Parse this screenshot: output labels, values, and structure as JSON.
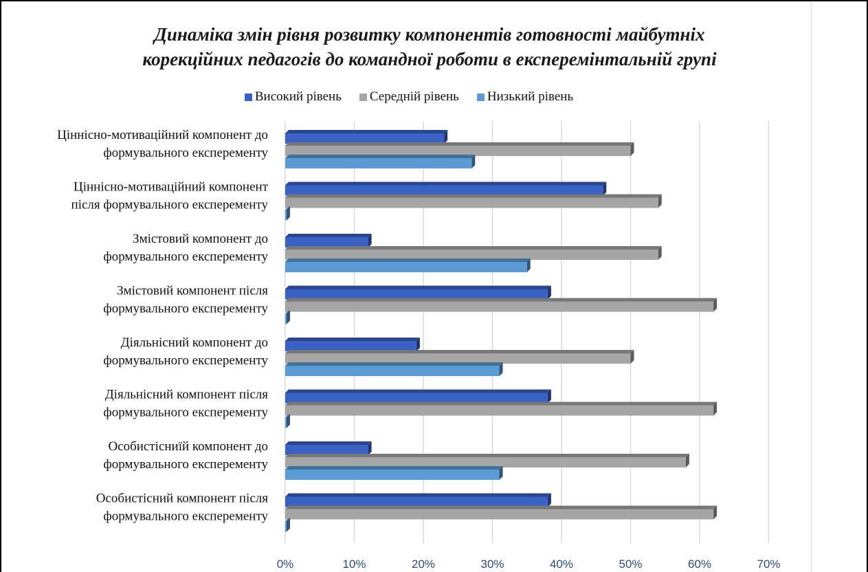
{
  "chart_data": {
    "type": "bar",
    "orientation": "horizontal",
    "title_lines": [
      "Динаміка змін рівня розвитку  компонентів готовності майбутніх",
      "корекційних педагогів до командної роботи в експеремінтальній групі"
    ],
    "categories": [
      [
        "Ціннісно-мотиваційний компонент до",
        "формувального експеременту"
      ],
      [
        "Ціннісно-мотиваційний компонент",
        "після формувального експеременту"
      ],
      [
        "Змістовий компонент  до",
        "формувального експеременту"
      ],
      [
        "Змістовий компонент після",
        "формувального експеременту"
      ],
      [
        "Діяльнісний компонент  до",
        "формувального експеременту"
      ],
      [
        "Діяльнісний компонент  після",
        "формувального експеременту"
      ],
      [
        "Особистісниїй компонент до",
        "формувального експеременту"
      ],
      [
        "Особистісний компонент  після",
        "формувального експеременту"
      ]
    ],
    "series": [
      {
        "name": "Високий рівень",
        "color": "#3a62c4",
        "values": [
          23,
          46,
          12,
          38,
          19,
          38,
          12,
          38
        ]
      },
      {
        "name": "Середній рівень",
        "color": "#a6a6a6",
        "values": [
          50,
          54,
          54,
          62,
          50,
          62,
          58,
          62
        ]
      },
      {
        "name": "Низький рівень",
        "color": "#5b9bd5",
        "values": [
          27,
          0,
          35,
          0,
          31,
          0,
          31,
          0
        ]
      }
    ],
    "x_ticks": [
      "0%",
      "10%",
      "20%",
      "30%",
      "40%",
      "50%",
      "60%",
      "70%"
    ],
    "xlim": [
      0,
      70
    ],
    "grid": true,
    "legend_position": "top"
  }
}
